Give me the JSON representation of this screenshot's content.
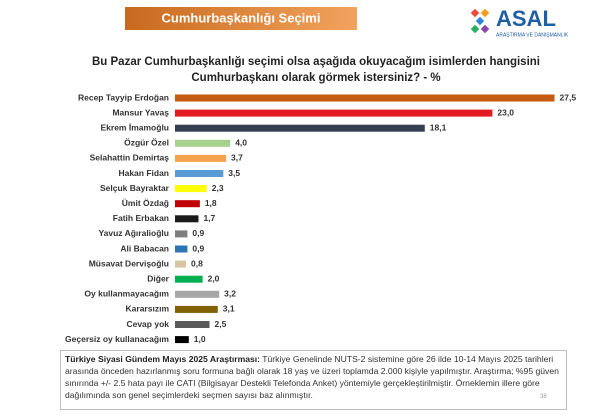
{
  "header": {
    "title": "Cumhurbaşkanlığı Seçimi",
    "logo": "ASAL",
    "logo_subtitle": "ARAŞTIRMA VE DANIŞMANLIK"
  },
  "chart_data": {
    "type": "bar",
    "orientation": "horizontal",
    "title": [
      "Bu Pazar Cumhurbaşkanlığı seçimi olsa aşağıda okuyacağım isimlerden hangisini",
      "Cumhurbaşkanı olarak görmek istersiniz? - %"
    ],
    "categories": [
      "Recep Tayyip Erdoğan",
      "Mansur Yavaş",
      "Ekrem İmamoğlu",
      "Özgür Özel",
      "Selahattin Demirtaş",
      "Hakan Fidan",
      "Selçuk Bayraktar",
      "Ümit Özdağ",
      "Fatih Erbakan",
      "Yavuz Ağıralioğlu",
      "Ali Babacan",
      "Müsavat Dervişoğlu",
      "Diğer",
      "Oy kullanmayacağım",
      "Kararsızım",
      "Cevap yok",
      "Geçersiz oy kullanacağım"
    ],
    "values": [
      27.5,
      23.0,
      18.1,
      4.0,
      3.7,
      3.5,
      2.3,
      1.8,
      1.7,
      0.9,
      0.9,
      0.8,
      2.0,
      3.2,
      3.1,
      2.5,
      1.0
    ],
    "value_labels": [
      "27,5",
      "23,0",
      "18,1",
      "4,0",
      "3,7",
      "3,5",
      "2,3",
      "1,8",
      "1,7",
      "0,9",
      "0,9",
      "0,8",
      "2,0",
      "3,2",
      "3,1",
      "2,5",
      "1,0"
    ],
    "colors": [
      "#c55a11",
      "#e31b23",
      "#333f50",
      "#a9d18e",
      "#f4a24c",
      "#5b9bd5",
      "#ffff00",
      "#c00000",
      "#1a1a1a",
      "#7f7f7f",
      "#2e75b6",
      "#d6c7a1",
      "#00b050",
      "#a6a6a6",
      "#806000",
      "#595959",
      "#000000"
    ]
  },
  "footnote": {
    "heading": "Türkiye Siyasi Gündem Mayıs 2025 Araştırması:",
    "text": "Türkiye Genelinde NUTS-2 sistemine göre 26 ilde 10-14 Mayıs 2025 tarihleri arasında önceden hazırlanmış soru formuna bağlı olarak 18 yaş ve üzeri toplamda 2.000 kişiyle yapılmıştır. Araştırma; %95 güven sınırında +/- 2.5 hata payı ile CATI (Bilgisayar Destekli Telefonda Anket) yöntemiyle gerçekleştirilmiştir. Örneklemin illere göre dağılımında son genel seçimlerdeki seçmen sayısı baz alınmıştır."
  },
  "page_number": "38"
}
